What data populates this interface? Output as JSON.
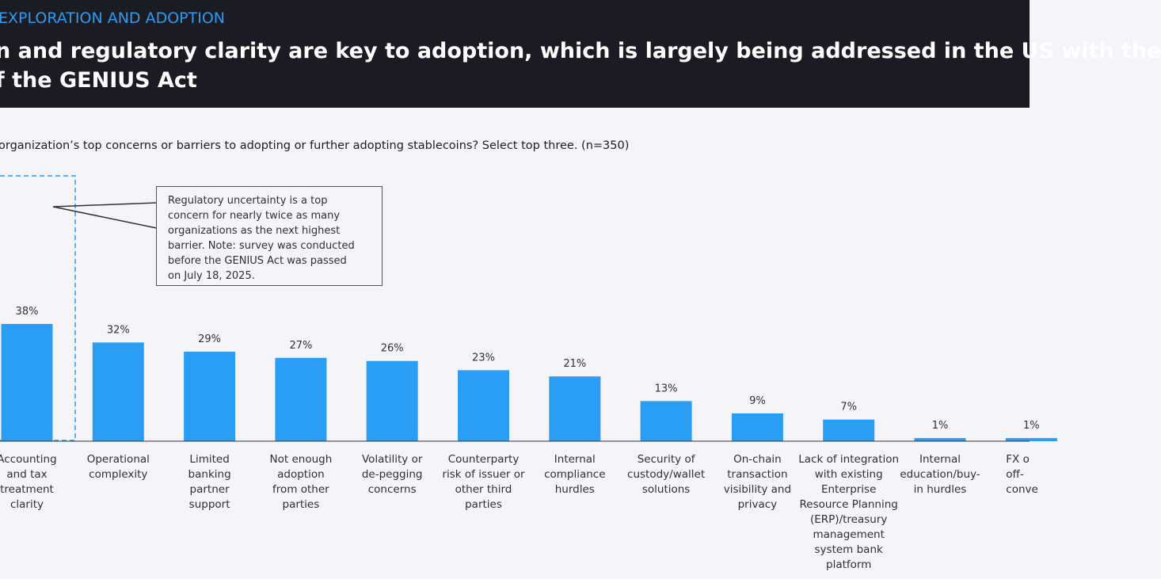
{
  "header": {
    "section": "EXPLORATION AND ADOPTION",
    "title": "n and regulatory clarity are key to adoption, which is largely being addressed in the US with the\nf the GENIUS Act"
  },
  "question": "organization’s top concerns or barriers to adopting or further adopting stablecoins? Select top three. (n=350)",
  "callout": "Regulatory uncertainty is a top\nconcern for nearly twice as many\norganizations as the next highest\nbarrier. Note: survey was conducted\nbefore the GENIUS Act was passed\non July 18, 2025.",
  "chart_data": {
    "type": "bar",
    "bar_color": "#2a9df4",
    "highlight_color": "#2a9df4",
    "categories": [
      "Accounting\nand tax\ntreatment\nclarity",
      "Operational\ncomplexity",
      "Limited\nbanking\npartner\nsupport",
      "Not enough\nadoption\nfrom other\nparties",
      "Volatility or\nde-pegging\nconcerns",
      "Counterparty\nrisk of issuer or\nother third\nparties",
      "Internal\ncompliance\nhurdles",
      "Security of\ncustody/wallet\nsolutions",
      "On-chain\ntransaction\nvisibility and\nprivacy",
      "Lack of integration\nwith existing\nEnterprise\nResource Planning\n(ERP)/treasury\nmanagement\nsystem bank\nplatform",
      "Internal\neducation/buy-\nin hurdles",
      "FX o\noff-\nconve"
    ],
    "values": [
      38,
      32,
      29,
      27,
      26,
      23,
      21,
      13,
      9,
      7,
      1,
      1
    ],
    "value_suffix": "%",
    "ylim": [
      0,
      40
    ],
    "grid": false
  }
}
